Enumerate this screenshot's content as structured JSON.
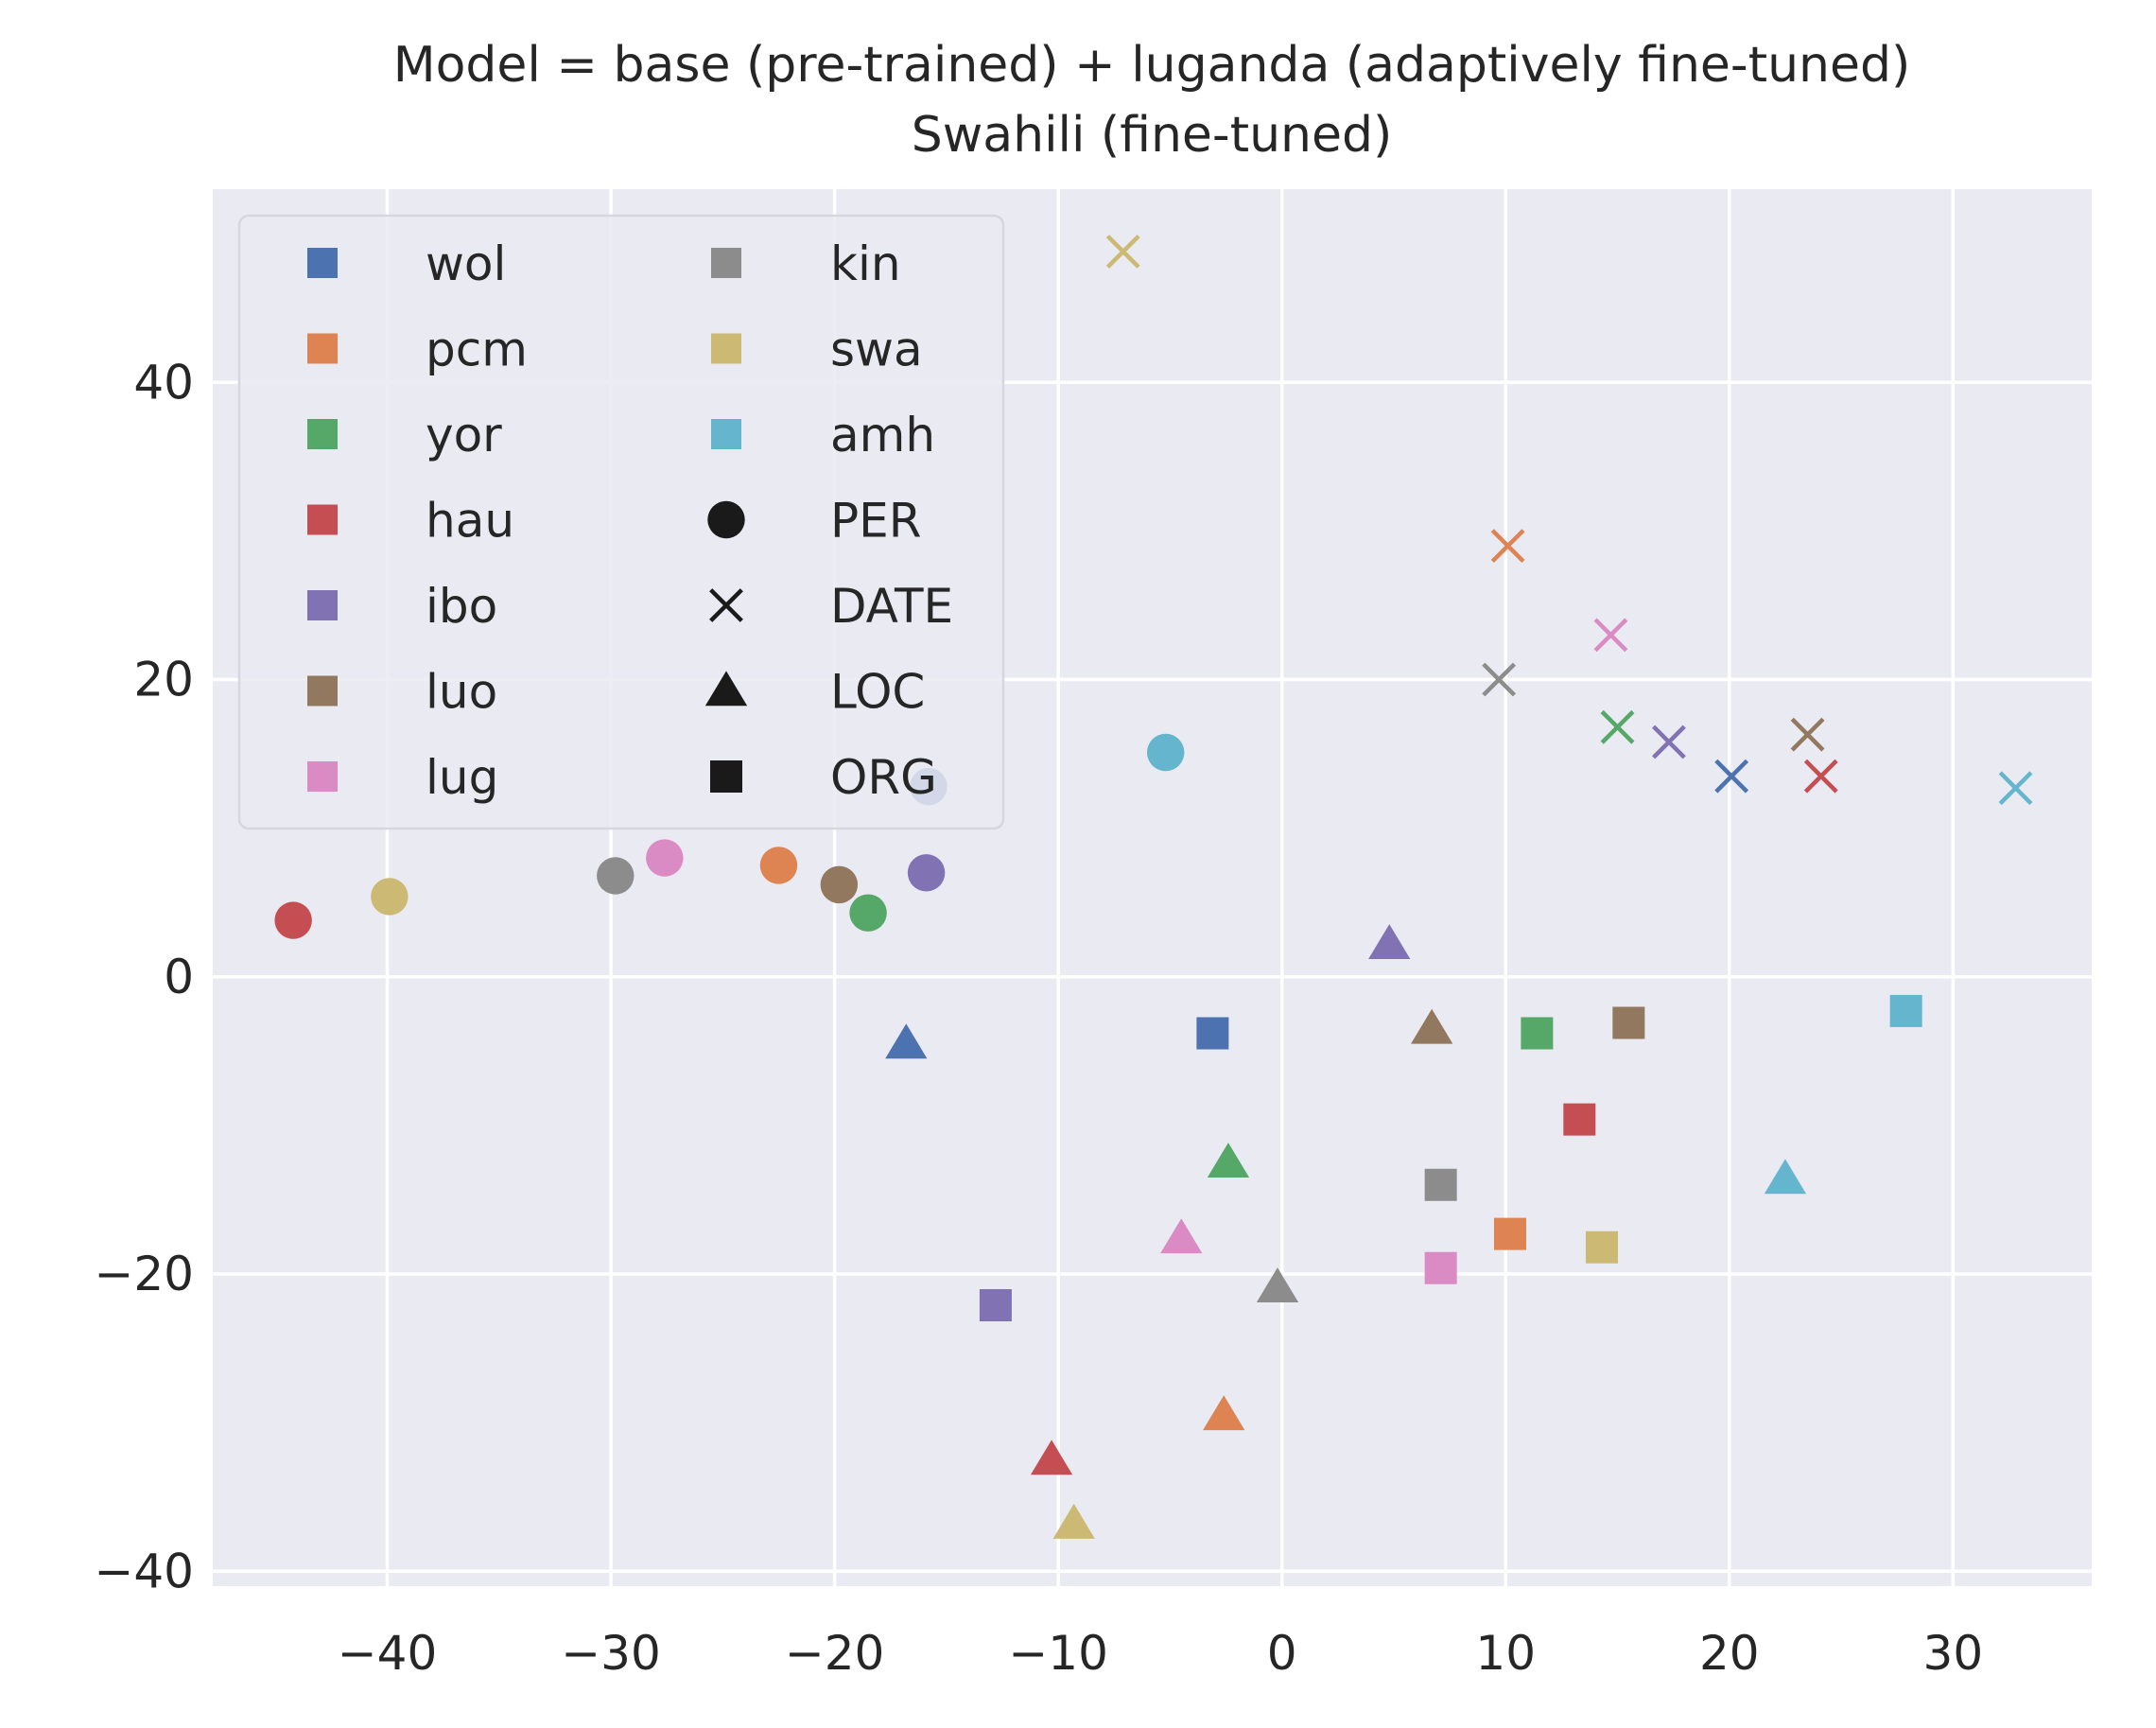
{
  "chart_data": {
    "type": "scatter",
    "title": "Model = base (pre-trained) + luganda (adaptively fine-tuned)",
    "subtitle": "Swahili (fine-tuned)",
    "xlabel": "",
    "ylabel": "",
    "xlim": [
      -47.8,
      36.2
    ],
    "ylim": [
      -41,
      53
    ],
    "xticks": [
      -40,
      -30,
      -20,
      -10,
      0,
      10,
      20,
      30
    ],
    "yticks": [
      -40,
      -20,
      0,
      20,
      40
    ],
    "xtick_labels": [
      "−40",
      "−30",
      "−20",
      "−10",
      "0",
      "10",
      "20",
      "30"
    ],
    "ytick_labels": [
      "−40",
      "−20",
      "0",
      "20",
      "40"
    ],
    "grid": true,
    "legend_position": "top-left",
    "languages": [
      {
        "name": "wol",
        "color": "#4c72b0"
      },
      {
        "name": "pcm",
        "color": "#dd8452"
      },
      {
        "name": "yor",
        "color": "#55a868"
      },
      {
        "name": "hau",
        "color": "#c44e52"
      },
      {
        "name": "ibo",
        "color": "#8172b3"
      },
      {
        "name": "luo",
        "color": "#937860"
      },
      {
        "name": "lug",
        "color": "#da8bc3"
      },
      {
        "name": "kin",
        "color": "#8c8c8c"
      },
      {
        "name": "swa",
        "color": "#ccb974"
      },
      {
        "name": "amh",
        "color": "#64b5cd"
      }
    ],
    "entity_types": [
      {
        "name": "PER",
        "marker": "circle"
      },
      {
        "name": "DATE",
        "marker": "x"
      },
      {
        "name": "LOC",
        "marker": "triangle"
      },
      {
        "name": "ORG",
        "marker": "square"
      }
    ],
    "points": [
      {
        "lang": "wol",
        "type": "PER",
        "x": -15.8,
        "y": 12.8
      },
      {
        "lang": "pcm",
        "type": "PER",
        "x": -22.5,
        "y": 7.5
      },
      {
        "lang": "yor",
        "type": "PER",
        "x": -18.5,
        "y": 4.3
      },
      {
        "lang": "hau",
        "type": "PER",
        "x": -44.2,
        "y": 3.8
      },
      {
        "lang": "ibo",
        "type": "PER",
        "x": -15.9,
        "y": 7.0
      },
      {
        "lang": "luo",
        "type": "PER",
        "x": -19.8,
        "y": 6.2
      },
      {
        "lang": "lug",
        "type": "PER",
        "x": -27.6,
        "y": 8.0
      },
      {
        "lang": "kin",
        "type": "PER",
        "x": -29.8,
        "y": 6.8
      },
      {
        "lang": "swa",
        "type": "PER",
        "x": -39.9,
        "y": 5.4
      },
      {
        "lang": "amh",
        "type": "PER",
        "x": -5.2,
        "y": 15.1
      },
      {
        "lang": "wol",
        "type": "DATE",
        "x": 20.1,
        "y": 13.5
      },
      {
        "lang": "pcm",
        "type": "DATE",
        "x": 10.1,
        "y": 29.0
      },
      {
        "lang": "yor",
        "type": "DATE",
        "x": 15.0,
        "y": 16.8
      },
      {
        "lang": "hau",
        "type": "DATE",
        "x": 24.1,
        "y": 13.5
      },
      {
        "lang": "ibo",
        "type": "DATE",
        "x": 17.3,
        "y": 15.8
      },
      {
        "lang": "luo",
        "type": "DATE",
        "x": 23.5,
        "y": 16.3
      },
      {
        "lang": "lug",
        "type": "DATE",
        "x": 14.7,
        "y": 23.0
      },
      {
        "lang": "kin",
        "type": "DATE",
        "x": 9.7,
        "y": 20.0
      },
      {
        "lang": "swa",
        "type": "DATE",
        "x": -7.1,
        "y": 48.8
      },
      {
        "lang": "amh",
        "type": "DATE",
        "x": 32.8,
        "y": 12.7
      },
      {
        "lang": "wol",
        "type": "LOC",
        "x": -16.8,
        "y": -4.5
      },
      {
        "lang": "pcm",
        "type": "LOC",
        "x": -2.6,
        "y": -29.5
      },
      {
        "lang": "yor",
        "type": "LOC",
        "x": -2.4,
        "y": -12.5
      },
      {
        "lang": "hau",
        "type": "LOC",
        "x": -10.3,
        "y": -32.5
      },
      {
        "lang": "ibo",
        "type": "LOC",
        "x": 4.8,
        "y": 2.2
      },
      {
        "lang": "luo",
        "type": "LOC",
        "x": 6.7,
        "y": -3.5
      },
      {
        "lang": "lug",
        "type": "LOC",
        "x": -4.5,
        "y": -17.6
      },
      {
        "lang": "kin",
        "type": "LOC",
        "x": -0.2,
        "y": -20.9
      },
      {
        "lang": "swa",
        "type": "LOC",
        "x": -9.3,
        "y": -36.8
      },
      {
        "lang": "amh",
        "type": "LOC",
        "x": 22.5,
        "y": -13.6
      },
      {
        "lang": "wol",
        "type": "ORG",
        "x": -3.1,
        "y": -3.8
      },
      {
        "lang": "pcm",
        "type": "ORG",
        "x": 10.2,
        "y": -17.3
      },
      {
        "lang": "yor",
        "type": "ORG",
        "x": 11.4,
        "y": -3.8
      },
      {
        "lang": "hau",
        "type": "ORG",
        "x": 13.3,
        "y": -9.6
      },
      {
        "lang": "ibo",
        "type": "ORG",
        "x": -12.8,
        "y": -22.1
      },
      {
        "lang": "luo",
        "type": "ORG",
        "x": 15.5,
        "y": -3.1
      },
      {
        "lang": "lug",
        "type": "ORG",
        "x": 7.1,
        "y": -19.6
      },
      {
        "lang": "kin",
        "type": "ORG",
        "x": 7.1,
        "y": -14.0
      },
      {
        "lang": "swa",
        "type": "ORG",
        "x": 14.3,
        "y": -18.2
      },
      {
        "lang": "amh",
        "type": "ORG",
        "x": 27.9,
        "y": -2.3
      }
    ]
  }
}
